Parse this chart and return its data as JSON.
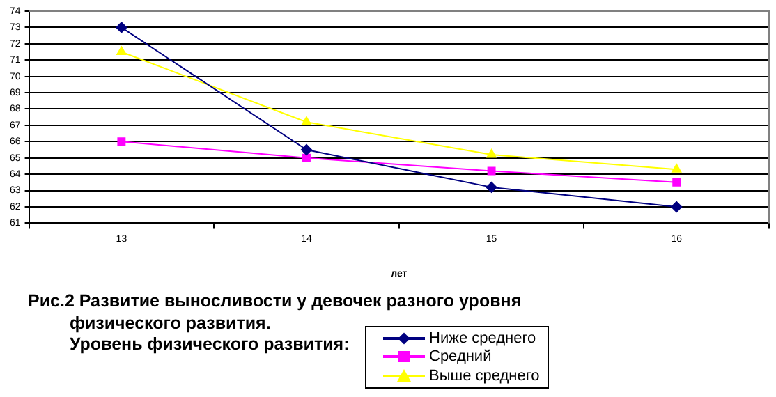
{
  "chart_data": {
    "type": "line",
    "title": "Рис.2 Развитие выносливости у девочек разного уровня физического развития.",
    "xlabel": "лет",
    "legend_title": "Уровень физического развития:",
    "categories": [
      "13",
      "14",
      "15",
      "16"
    ],
    "series": [
      {
        "name": "Ниже среднего",
        "color": "#000080",
        "marker": "diamond",
        "values": [
          73,
          65.5,
          63.2,
          62
        ]
      },
      {
        "name": "Средний",
        "color": "#ff00ff",
        "marker": "square",
        "values": [
          66,
          65,
          64.2,
          63.5
        ]
      },
      {
        "name": "Выше среднего",
        "color": "#ffff00",
        "marker": "triangle",
        "values": [
          71.5,
          67.2,
          65.2,
          64.3
        ]
      }
    ],
    "ylim": [
      61,
      74
    ],
    "yticks": [
      61,
      62,
      63,
      64,
      65,
      66,
      67,
      68,
      69,
      70,
      71,
      72,
      73,
      74
    ],
    "grid": "y",
    "legend": "bottom right",
    "line_style": "solid"
  }
}
